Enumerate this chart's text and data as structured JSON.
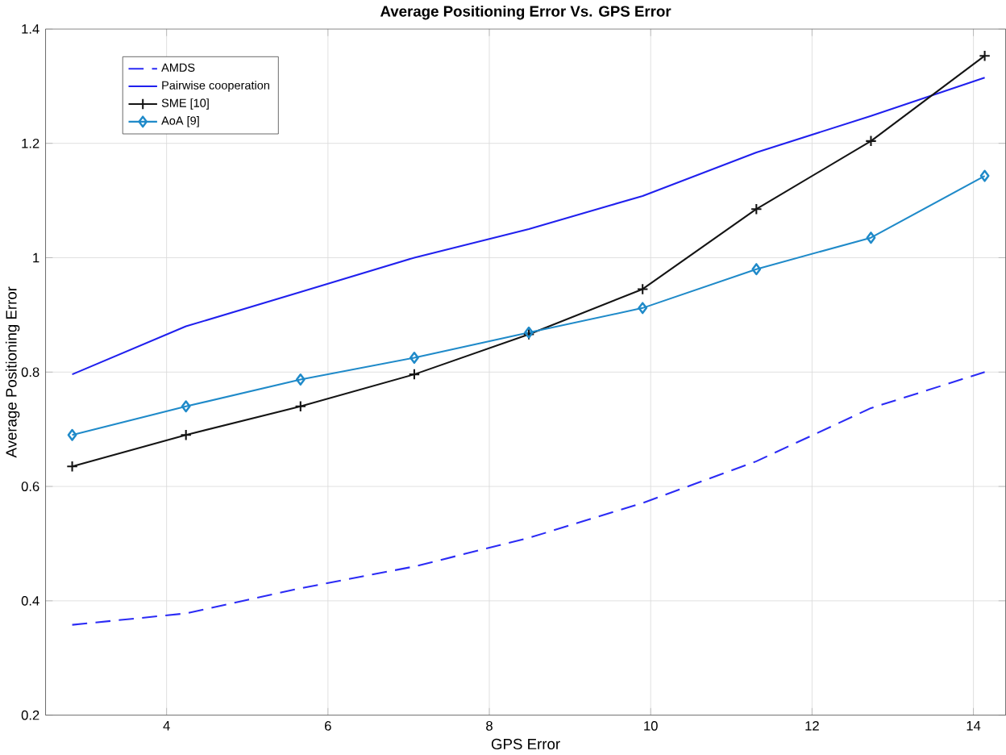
{
  "chart_data": {
    "type": "line",
    "title": "Average Positioning Error Vs. GPS Error",
    "xlabel": "GPS Error",
    "ylabel": "Average Positioning Error",
    "x": [
      2.83,
      4.24,
      5.66,
      7.07,
      8.49,
      9.9,
      11.31,
      12.73,
      14.14
    ],
    "series": [
      {
        "name": "AMDS",
        "color": "#2b2bf5",
        "line_style": "dashed",
        "marker": "none",
        "values": [
          0.358,
          0.378,
          0.422,
          0.46,
          0.51,
          0.571,
          0.644,
          0.737,
          0.8
        ]
      },
      {
        "name": "Pairwise cooperation",
        "color": "#2020ee",
        "line_style": "solid",
        "marker": "none",
        "values": [
          0.796,
          0.88,
          0.94,
          1.0,
          1.05,
          1.108,
          1.184,
          1.248,
          1.315
        ]
      },
      {
        "name": "SME [10]",
        "color": "#141414",
        "line_style": "solid",
        "marker": "cross",
        "values": [
          0.635,
          0.69,
          0.74,
          0.796,
          0.866,
          0.945,
          1.085,
          1.204,
          1.353
        ]
      },
      {
        "name": "AoA [9]",
        "color": "#1f8ac9",
        "line_style": "solid",
        "marker": "diamond",
        "values": [
          0.69,
          0.74,
          0.787,
          0.825,
          0.869,
          0.912,
          0.98,
          1.035,
          1.143
        ]
      }
    ],
    "xlim": [
      2.5,
      14.4
    ],
    "ylim": [
      0.2,
      1.4
    ],
    "xticks": [
      4,
      6,
      8,
      10,
      12,
      14
    ],
    "yticks": [
      0.2,
      0.4,
      0.6,
      0.8,
      1,
      1.2,
      1.4
    ],
    "grid": true,
    "legend": "top left"
  }
}
